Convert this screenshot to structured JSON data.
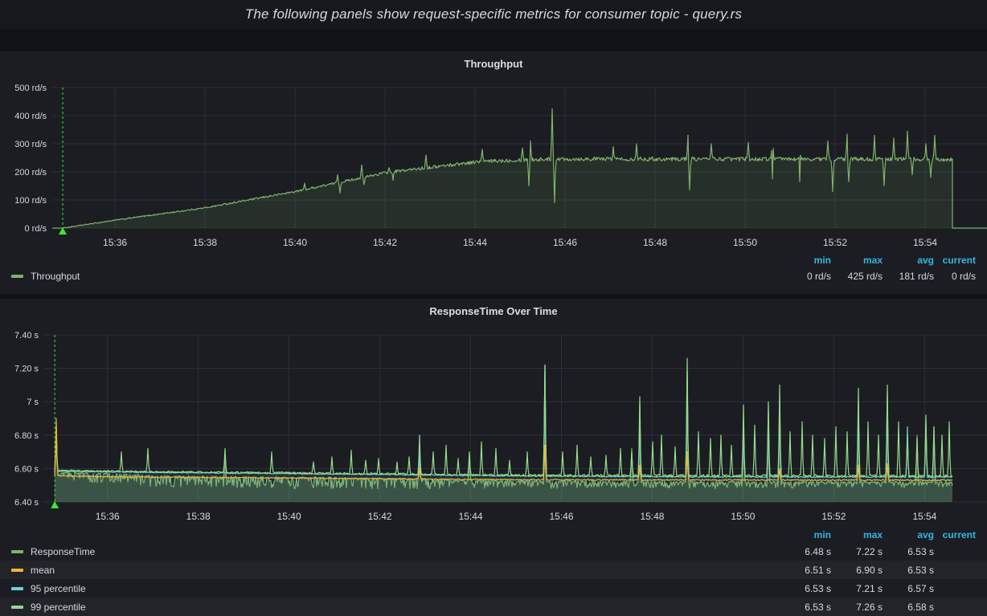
{
  "page": {
    "title": "The following panels show request-specific metrics for consumer topic - query.rs"
  },
  "colors": {
    "dashboard_bg": "#111217",
    "panel_bg": "#1b1d22",
    "text_panel_bg": "#17181e",
    "grid": "#2c3036",
    "axis_text": "#d8d9da",
    "legend_header": "#33b5e5",
    "annotation": "#3ce83c",
    "legend_row_alt_bg": "#22242a",
    "series_green": "#7eb26d",
    "series_yellow": "#eab839",
    "series_teal": "#6ed0e0",
    "series_lightgreen": "#96d98d"
  },
  "chart_data": [
    {
      "id": "throughput",
      "type": "area",
      "title": "Throughput",
      "unit": "rd/s",
      "ylim": [
        0,
        500
      ],
      "yticks": [
        {
          "v": 0,
          "label": "0 rd/s"
        },
        {
          "v": 100,
          "label": "100 rd/s"
        },
        {
          "v": 200,
          "label": "200 rd/s"
        },
        {
          "v": 300,
          "label": "300 rd/s"
        },
        {
          "v": 400,
          "label": "400 rd/s"
        },
        {
          "v": 500,
          "label": "500 rd/s"
        }
      ],
      "xticks": [
        {
          "t": 0.0671,
          "label": "15:36"
        },
        {
          "t": 0.1634,
          "label": "15:38"
        },
        {
          "t": 0.2597,
          "label": "15:40"
        },
        {
          "t": 0.356,
          "label": "15:42"
        },
        {
          "t": 0.4523,
          "label": "15:44"
        },
        {
          "t": 0.5486,
          "label": "15:46"
        },
        {
          "t": 0.6449,
          "label": "15:48"
        },
        {
          "t": 0.7412,
          "label": "15:50"
        },
        {
          "t": 0.8375,
          "label": "15:52"
        },
        {
          "t": 0.9338,
          "label": "15:54"
        }
      ],
      "annotation_t": 0.0112,
      "data_start_t": 0.0112,
      "data_end_t": 0.963,
      "series": [
        {
          "name": "Throughput",
          "color": "#7eb26d",
          "fill_opacity": 0.12,
          "zero_outside": true,
          "keypoints": [
            [
              0.0112,
              0
            ],
            [
              0.067,
              28
            ],
            [
              0.163,
              72
            ],
            [
              0.26,
              130
            ],
            [
              0.356,
              197
            ],
            [
              0.452,
              235
            ],
            [
              0.5,
              243
            ],
            [
              0.55,
              246
            ],
            [
              0.963,
              245
            ]
          ],
          "noise": [
            [
              0.0112,
              1.5
            ],
            [
              0.15,
              2.5
            ],
            [
              0.3,
              4
            ],
            [
              0.42,
              6
            ],
            [
              0.5,
              7
            ],
            [
              0.963,
              7
            ]
          ],
          "spikes": [
            [
              0.27,
              160
            ],
            [
              0.305,
              190
            ],
            [
              0.331,
              225
            ],
            [
              0.36,
              215
            ],
            [
              0.4,
              260
            ],
            [
              0.46,
              280
            ],
            [
              0.503,
              285
            ],
            [
              0.512,
              310
            ],
            [
              0.535,
              425
            ],
            [
              0.6,
              290
            ],
            [
              0.625,
              300
            ],
            [
              0.68,
              330
            ],
            [
              0.705,
              300
            ],
            [
              0.745,
              305
            ],
            [
              0.77,
              330
            ],
            [
              0.8,
              300
            ],
            [
              0.83,
              310
            ],
            [
              0.85,
              335
            ],
            [
              0.88,
              330
            ],
            [
              0.9,
              320
            ],
            [
              0.915,
              345
            ],
            [
              0.935,
              300
            ],
            [
              0.944,
              330
            ]
          ],
          "dips": [
            [
              0.308,
              125
            ],
            [
              0.334,
              155
            ],
            [
              0.365,
              170
            ],
            [
              0.51,
              150
            ],
            [
              0.537,
              90
            ],
            [
              0.682,
              135
            ],
            [
              0.77,
              175
            ],
            [
              0.8,
              165
            ],
            [
              0.835,
              130
            ],
            [
              0.852,
              165
            ],
            [
              0.89,
              150
            ],
            [
              0.92,
              190
            ],
            [
              0.94,
              180
            ]
          ]
        }
      ],
      "legend": {
        "headers": [
          "min",
          "max",
          "avg",
          "current"
        ],
        "rows": [
          {
            "label": "Throughput",
            "color": "#7eb26d",
            "values": [
              "0 rd/s",
              "425 rd/s",
              "181 rd/s",
              "0 rd/s"
            ]
          }
        ]
      }
    },
    {
      "id": "response_time",
      "type": "line",
      "title": "ResponseTime Over Time",
      "unit": "s",
      "ylim": [
        6.4,
        7.4
      ],
      "yticks": [
        {
          "v": 6.4,
          "label": "6.40 s"
        },
        {
          "v": 6.6,
          "label": "6.60 s"
        },
        {
          "v": 6.8,
          "label": "6.80 s"
        },
        {
          "v": 7.0,
          "label": "7 s"
        },
        {
          "v": 7.2,
          "label": "7.20 s"
        },
        {
          "v": 7.4,
          "label": "7.40 s"
        }
      ],
      "xticks": [
        {
          "t": 0.0671,
          "label": "15:36"
        },
        {
          "t": 0.1634,
          "label": "15:38"
        },
        {
          "t": 0.2597,
          "label": "15:40"
        },
        {
          "t": 0.356,
          "label": "15:42"
        },
        {
          "t": 0.4523,
          "label": "15:44"
        },
        {
          "t": 0.5486,
          "label": "15:46"
        },
        {
          "t": 0.6449,
          "label": "15:48"
        },
        {
          "t": 0.7412,
          "label": "15:50"
        },
        {
          "t": 0.8375,
          "label": "15:52"
        },
        {
          "t": 0.9338,
          "label": "15:54"
        }
      ],
      "annotation_t": 0.0112,
      "data_start_t": 0.0112,
      "data_end_t": 0.963,
      "series": [
        {
          "name": "ResponseTime",
          "color": "#7eb26d",
          "fill_opacity": 0.28,
          "keypoints": [
            [
              0.0112,
              6.575
            ],
            [
              0.07,
              6.572
            ],
            [
              0.12,
              6.555
            ],
            [
              0.3,
              6.545
            ],
            [
              0.5,
              6.525
            ],
            [
              0.7,
              6.52
            ],
            [
              0.963,
              6.52
            ]
          ],
          "noise": [
            [
              0,
              0.004
            ],
            [
              1,
              0.005
            ]
          ],
          "noise_down": [
            [
              0.0112,
              0.015
            ],
            [
              0.05,
              0.065
            ],
            [
              0.35,
              0.065
            ],
            [
              0.5,
              0.04
            ],
            [
              0.963,
              0.03
            ]
          ],
          "spikes": [
            [
              0.013,
              6.8
            ],
            [
              0.192,
              6.68
            ],
            [
              0.398,
              6.72
            ],
            [
              0.451,
              6.66
            ],
            [
              0.531,
              7.22
            ],
            [
              0.623,
              6.72
            ],
            [
              0.632,
              7.0
            ],
            [
              0.682,
              7.18
            ],
            [
              0.742,
              6.9
            ],
            [
              0.768,
              6.95
            ],
            [
              0.78,
              7.02
            ],
            [
              0.864,
              7.0
            ],
            [
              0.894,
              7.05
            ],
            [
              0.926,
              6.8
            ],
            [
              0.944,
              6.85
            ]
          ]
        },
        {
          "name": "95 percentile",
          "color": "#6ed0e0",
          "fill_opacity": 0.1,
          "keypoints": [
            [
              0.0112,
              6.585
            ],
            [
              0.1,
              6.578
            ],
            [
              0.3,
              6.568
            ],
            [
              0.5,
              6.556
            ],
            [
              0.7,
              6.55
            ],
            [
              0.963,
              6.55
            ]
          ],
          "noise": [
            [
              0,
              0.003
            ],
            [
              1,
              0.004
            ]
          ],
          "spikes": [
            [
              0.013,
              6.85
            ],
            [
              0.398,
              6.68
            ],
            [
              0.531,
              7.21
            ],
            [
              0.632,
              6.9
            ],
            [
              0.682,
              7.18
            ],
            [
              0.742,
              6.85
            ],
            [
              0.768,
              6.88
            ],
            [
              0.78,
              6.95
            ],
            [
              0.864,
              6.95
            ],
            [
              0.894,
              7.0
            ],
            [
              0.916,
              6.85
            ],
            [
              0.935,
              6.88
            ]
          ]
        },
        {
          "name": "99 percentile",
          "color": "#96d98d",
          "keypoints": [
            [
              0.0112,
              6.588
            ],
            [
              0.1,
              6.582
            ],
            [
              0.3,
              6.572
            ],
            [
              0.5,
              6.56
            ],
            [
              0.963,
              6.556
            ]
          ],
          "noise": [
            [
              0,
              0.005
            ],
            [
              1,
              0.007
            ]
          ],
          "spikes": [
            [
              0.013,
              6.84
            ],
            [
              0.082,
              6.7
            ],
            [
              0.11,
              6.72
            ],
            [
              0.192,
              6.72
            ],
            [
              0.241,
              6.7
            ],
            [
              0.286,
              6.64
            ],
            [
              0.305,
              6.67
            ],
            [
              0.326,
              6.71
            ],
            [
              0.341,
              6.65
            ],
            [
              0.355,
              6.66
            ],
            [
              0.374,
              6.64
            ],
            [
              0.387,
              6.67
            ],
            [
              0.398,
              6.8
            ],
            [
              0.413,
              6.7
            ],
            [
              0.426,
              6.74
            ],
            [
              0.439,
              6.66
            ],
            [
              0.451,
              6.7
            ],
            [
              0.464,
              6.76
            ],
            [
              0.479,
              6.72
            ],
            [
              0.494,
              6.65
            ],
            [
              0.512,
              6.7
            ],
            [
              0.531,
              7.22
            ],
            [
              0.55,
              6.7
            ],
            [
              0.565,
              6.74
            ],
            [
              0.58,
              6.67
            ],
            [
              0.596,
              6.68
            ],
            [
              0.611,
              6.72
            ],
            [
              0.623,
              6.7
            ],
            [
              0.632,
              7.03
            ],
            [
              0.645,
              6.76
            ],
            [
              0.655,
              6.8
            ],
            [
              0.669,
              6.73
            ],
            [
              0.682,
              7.26
            ],
            [
              0.694,
              6.82
            ],
            [
              0.707,
              6.78
            ],
            [
              0.718,
              6.8
            ],
            [
              0.729,
              6.74
            ],
            [
              0.742,
              6.98
            ],
            [
              0.754,
              6.86
            ],
            [
              0.768,
              7.0
            ],
            [
              0.78,
              7.1
            ],
            [
              0.791,
              6.82
            ],
            [
              0.804,
              6.88
            ],
            [
              0.815,
              6.8
            ],
            [
              0.828,
              6.78
            ],
            [
              0.84,
              6.85
            ],
            [
              0.852,
              6.82
            ],
            [
              0.864,
              7.08
            ],
            [
              0.874,
              6.88
            ],
            [
              0.885,
              6.8
            ],
            [
              0.894,
              7.1
            ],
            [
              0.906,
              6.88
            ],
            [
              0.916,
              6.8
            ],
            [
              0.926,
              6.78
            ],
            [
              0.935,
              6.92
            ],
            [
              0.944,
              6.85
            ],
            [
              0.952,
              6.8
            ],
            [
              0.96,
              6.88
            ]
          ]
        },
        {
          "name": "mean",
          "color": "#eab839",
          "keypoints": [
            [
              0.0112,
              6.557
            ],
            [
              0.08,
              6.55
            ],
            [
              0.3,
              6.542
            ],
            [
              0.5,
              6.533
            ],
            [
              0.963,
              6.53
            ]
          ],
          "noise": [
            [
              0,
              0.003
            ],
            [
              1,
              0.004
            ]
          ],
          "spikes": [
            [
              0.013,
              6.9
            ],
            [
              0.398,
              6.6
            ],
            [
              0.531,
              6.74
            ],
            [
              0.632,
              6.62
            ],
            [
              0.682,
              6.7
            ],
            [
              0.78,
              6.6
            ],
            [
              0.864,
              6.62
            ],
            [
              0.894,
              6.63
            ]
          ]
        }
      ],
      "legend": {
        "headers": [
          "min",
          "max",
          "avg",
          "current"
        ],
        "rows": [
          {
            "label": "ResponseTime",
            "color": "#7eb26d",
            "values": [
              "6.48 s",
              "7.22 s",
              "6.53 s",
              ""
            ]
          },
          {
            "label": "mean",
            "color": "#eab839",
            "values": [
              "6.51 s",
              "6.90 s",
              "6.53 s",
              ""
            ]
          },
          {
            "label": "95 percentile",
            "color": "#6ed0e0",
            "values": [
              "6.53 s",
              "7.21 s",
              "6.57 s",
              ""
            ]
          },
          {
            "label": "99 percentile",
            "color": "#96d98d",
            "values": [
              "6.53 s",
              "7.26 s",
              "6.58 s",
              ""
            ]
          }
        ]
      }
    }
  ]
}
